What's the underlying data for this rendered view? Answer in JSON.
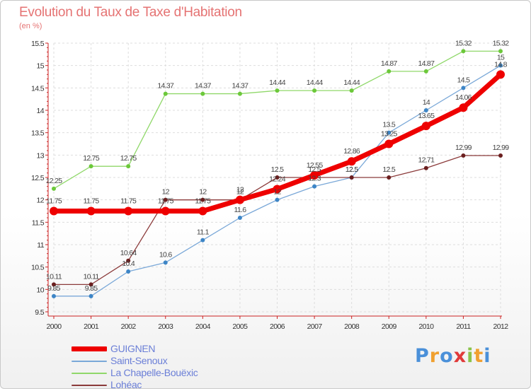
{
  "title": "Evolution du Taux de Taxe d'Habitation",
  "subtitle": "(en %)",
  "logo": {
    "text": "Proxiti",
    "letters": [
      "P",
      "r",
      "o",
      "x",
      "i",
      "t",
      "i"
    ],
    "colors": [
      "#4a90d9",
      "#f0a030",
      "#4a90d9",
      "#e03a3a",
      "#8bc34a",
      "#f0a030",
      "#4a90d9"
    ]
  },
  "chart_data": {
    "type": "line",
    "x": [
      "2000",
      "2001",
      "2002",
      "2003",
      "2004",
      "2005",
      "2006",
      "2007",
      "2008",
      "2009",
      "2010",
      "2011",
      "2012"
    ],
    "y_ticks": [
      "9.5",
      "10",
      "10.5",
      "11",
      "11.5",
      "12",
      "12.5",
      "13",
      "13.5",
      "14",
      "14.5",
      "15",
      "15.5"
    ],
    "ylim": [
      9.5,
      15.5
    ],
    "series": [
      {
        "name": "La Chapelle-Bouëxic",
        "color": "#90d86a",
        "marker": "#6cc83a",
        "width": 1.3,
        "values": [
          12.25,
          12.75,
          12.75,
          14.37,
          14.37,
          14.37,
          14.44,
          14.44,
          14.44,
          14.87,
          14.87,
          15.32,
          15.32
        ],
        "labels": [
          "12.25",
          "12.75",
          "12.75",
          "14.37",
          "14.37",
          "14.37",
          "14.44",
          "14.44",
          "14.44",
          "14.87",
          "14.87",
          "15.32",
          "15.32"
        ]
      },
      {
        "name": "Saint-Senoux",
        "color": "#7aa8d8",
        "marker": "#3d85c6",
        "width": 1.3,
        "values": [
          9.85,
          9.85,
          10.4,
          10.6,
          11.1,
          11.6,
          12,
          12.3,
          12.5,
          13.5,
          14,
          14.5,
          15
        ],
        "labels": [
          "9.85",
          "9.85",
          "10.4",
          "10.6",
          "11.1",
          "11.6",
          "12",
          "12.3",
          "12.5",
          "13.5",
          "14",
          "14.5",
          "15"
        ]
      },
      {
        "name": "Lohéac",
        "color": "#8b3a3a",
        "marker": "#6b1f1f",
        "width": 1.3,
        "values": [
          10.11,
          10.11,
          10.64,
          12,
          12,
          12,
          12.5,
          12.5,
          12.5,
          12.5,
          12.71,
          12.99,
          12.99
        ],
        "labels": [
          "10.11",
          "10.11",
          "10.64",
          "12",
          "12",
          "12",
          "12.5",
          "12.5",
          "12.5",
          "12.5",
          "12.71",
          "12.99",
          "12.99"
        ]
      },
      {
        "name": "GUIGNEN",
        "color": "#ee0000",
        "marker": "#ee0000",
        "width": 7,
        "values": [
          11.75,
          11.75,
          11.75,
          11.75,
          11.75,
          12,
          12.24,
          12.55,
          12.86,
          13.25,
          13.65,
          14.06,
          14.8
        ],
        "labels": [
          "11.75",
          "11.75",
          "11.75",
          "11.75",
          "11.75",
          "12",
          "12.24",
          "12.55",
          "12.86",
          "13.25",
          "13.65",
          "14.06",
          "14.8"
        ]
      }
    ],
    "legend": [
      "GUIGNEN",
      "Saint-Senoux",
      "La Chapelle-Bouëxic",
      "Lohéac"
    ],
    "legend_colors": [
      "#ee0000",
      "#7aa8d8",
      "#90d86a",
      "#8b3a3a"
    ],
    "grid": true,
    "legend_position": "bottom-left"
  }
}
